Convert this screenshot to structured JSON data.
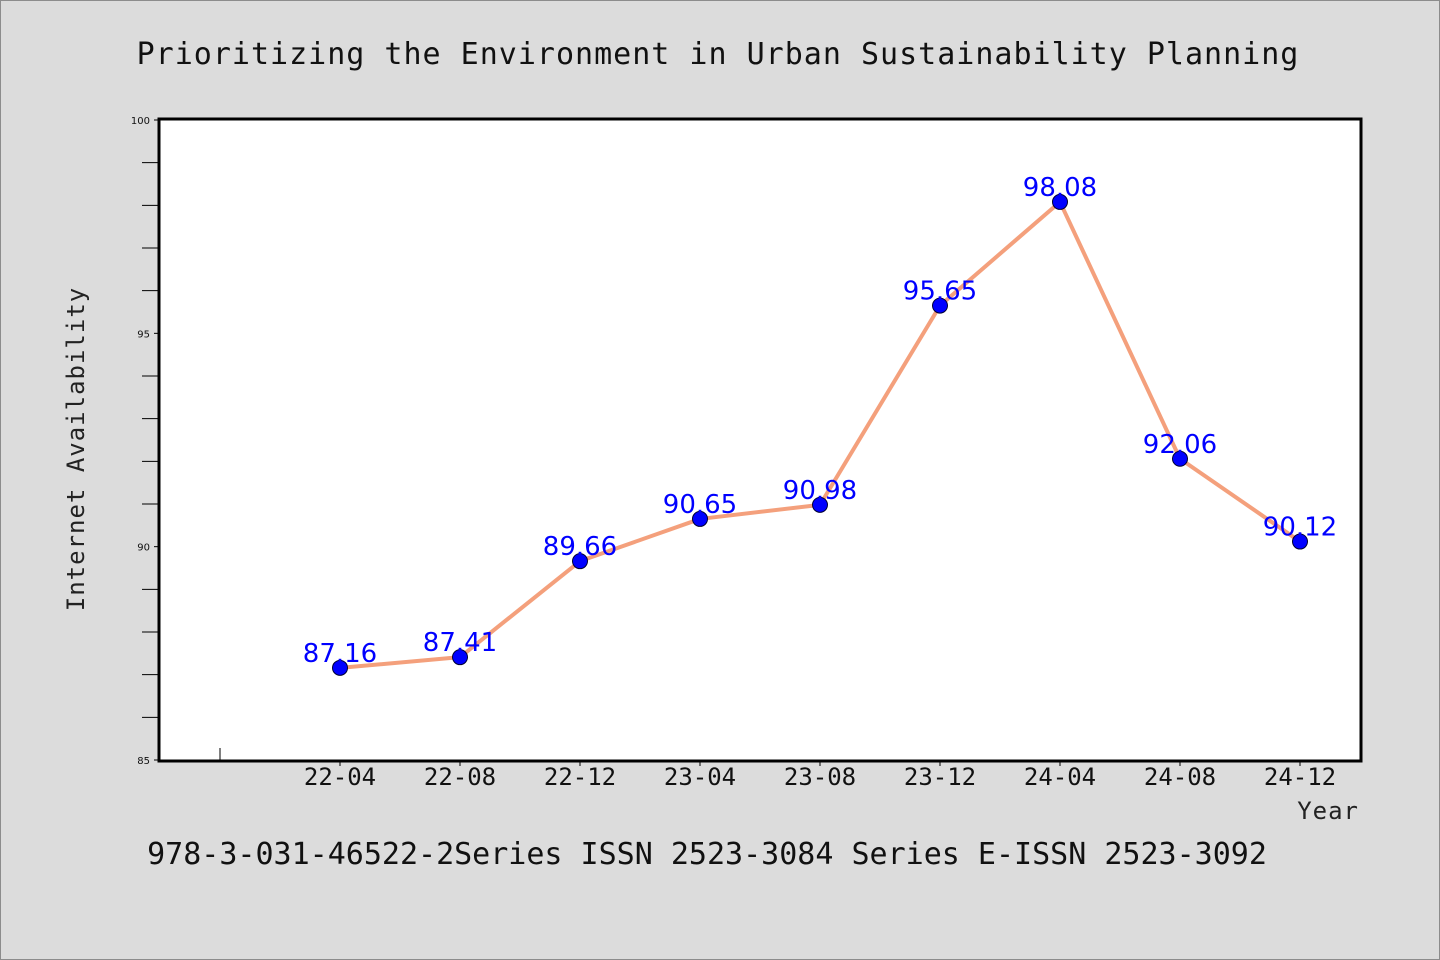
{
  "chart_data": {
    "type": "line",
    "title": "Prioritizing the Environment in Urban Sustainability Planning",
    "xlabel": "Year",
    "ylabel": "Internet Availability",
    "categories": [
      "22-04",
      "22-08",
      "22-12",
      "23-04",
      "23-08",
      "23-12",
      "24-04",
      "24-08",
      "24-12"
    ],
    "series": [
      {
        "values": [
          87.16,
          87.41,
          89.66,
          90.65,
          90.98,
          95.65,
          98.08,
          92.06,
          90.12
        ],
        "labels": [
          "87.16",
          "87.41",
          "89.66",
          "90.65",
          "90.98",
          "95.65",
          "98.08",
          "92.06",
          "90.12"
        ],
        "line_color": "#f4a07c",
        "marker_color": "#0000ff"
      }
    ],
    "ylim": [
      85,
      100
    ],
    "yticks": [
      "85",
      "90",
      "95",
      "100"
    ],
    "grid": false,
    "legend": "none"
  },
  "footer": "978-3-031-46522-2Series ISSN 2523-3084 Series E-ISSN 2523-3092",
  "colors": {
    "background": "#dcdcdc",
    "plot_background": "#ffffff",
    "line": "#f4a07c",
    "marker": "#0000ff",
    "data_label": "#0000ff"
  }
}
